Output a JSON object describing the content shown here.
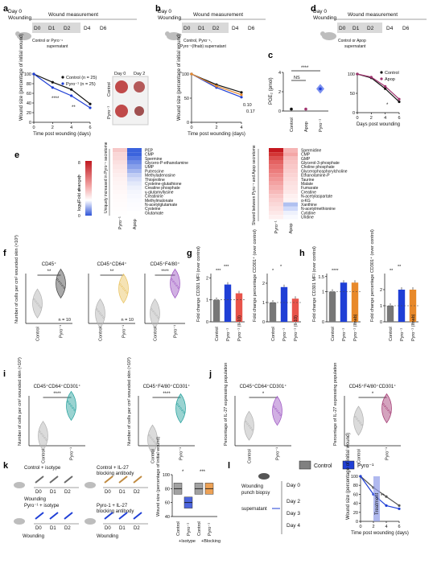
{
  "panel_letters": [
    "a",
    "b",
    "c",
    "d",
    "e",
    "f",
    "g",
    "h",
    "i",
    "j",
    "k",
    "l"
  ],
  "timeline": {
    "day0": "Day 0",
    "wounding": "Wounding",
    "wound_measurement": "Wound measurement",
    "days": [
      "D0",
      "D1",
      "D2",
      "D4",
      "D6"
    ],
    "control_or_pyro_supernatant": "Control or Pyro⁻¹",
    "supernatant": "supernatant",
    "control_pyro_pyro_ifnab": "Control, Pyro⁻¹,",
    "pyro_ifnab_supernatant": "Pyro⁻¹(Ifnab) supernatant",
    "control_or_apop": "Control or Apop",
    "apop_supernatant": "supernatant"
  },
  "panel_a": {
    "legend": [
      "Control (n = 25)",
      "Pyro⁻¹ (n = 25)"
    ],
    "stars": [
      "****",
      "**"
    ],
    "photo_labels": {
      "day0": "Day 0",
      "day2": "Day 2",
      "control": "Control",
      "pyro": "Pyro⁻¹"
    }
  },
  "panel_b": {
    "pvalues": [
      "0.10",
      "0.17"
    ]
  },
  "panel_c": {
    "ns": "NS",
    "stars": "****"
  },
  "panel_d": {
    "legend": [
      "Control",
      "Apop"
    ],
    "star": "*"
  },
  "panel_e": {
    "colorbar_title": "log₂(Fold change)",
    "colorbar_ticks": [
      "8",
      "6",
      "4",
      "2",
      "0"
    ],
    "left_group_label": "Uniquely increased in Pyro⁻¹ secretome",
    "right_group_label": "Shared between Pyro⁻¹ and Apop secretome",
    "left_columns": [
      "Pyro⁻¹",
      "Apop"
    ],
    "right_columns": [
      "Pyro⁻¹",
      "Apop"
    ],
    "left_metabolites": [
      "PEP",
      "CMP",
      "Spermine",
      "Glycero-P-ethanolamine",
      "UMP",
      "Putrescine",
      "Methyladenosine",
      "Thioproline",
      "Cysteine-glutathione",
      "Creatine phosphate",
      "γ-glutamyllysine",
      "Creatinine",
      "Methylmalonate",
      "N-acetylglutamate",
      "Cysteine",
      "Glutamate"
    ],
    "right_metabolites": [
      "Spermidine",
      "CMP",
      "GMP",
      "Glycerol-3-phosphate",
      "Choline phosphate",
      "Glycerophosphorylcholine",
      "Ethanolamine-P",
      "Taurine",
      "Malate",
      "Fumarate",
      "Creatine",
      "N-acetylaspartate",
      "α-KG",
      "Xanthine",
      "N-acetylmethionine",
      "Cytidine",
      "Uridine"
    ]
  },
  "panel_f": {
    "titles": [
      "CD45⁺",
      "CD45⁺CD64⁺",
      "CD45⁺F4/80⁺"
    ],
    "stars": [
      "**",
      "**",
      "****"
    ],
    "n_labels": [
      "n = 10",
      "n = 10"
    ],
    "xlabels": [
      "Control",
      "Pyro⁻¹"
    ]
  },
  "panel_g": {
    "stars": [
      "***",
      "***",
      "*",
      "*"
    ],
    "xlabels": [
      "Control",
      "Pyro⁻¹",
      "Pyro⁻¹ (Il-10)"
    ]
  },
  "panel_h": {
    "stars": [
      "****",
      "**",
      "**"
    ],
    "xlabels": [
      "Control",
      "Pyro⁻¹",
      "Pyro⁻¹ (Ifnab)"
    ]
  },
  "panel_i": {
    "titles": [
      "CD45⁺CD64⁺CD301⁺",
      "CD45⁺F4/80⁺CD301⁺"
    ],
    "stars": [
      "****",
      "****"
    ],
    "xlabels": [
      "Control",
      "Pyro⁻¹"
    ]
  },
  "panel_j": {
    "titles": [
      "CD45⁺CD64⁺CD301⁺",
      "CD45⁺F4/80⁺CD301⁺"
    ],
    "stars": [
      "*",
      "*"
    ],
    "xlabels": [
      "Control",
      "Pyro⁻¹"
    ]
  },
  "panel_k": {
    "groups": [
      "Control + isotype",
      "Control + IL-27",
      "blocking antibody",
      "Pyro⁻¹ + isotype",
      "Pyro-1 + IL-27",
      "blocking antibody"
    ],
    "stars": [
      "*",
      "***"
    ],
    "xlabels": [
      "Control",
      "Pyro⁻¹",
      "Control",
      "Pyro⁻¹"
    ],
    "group_labels": [
      "+Isotype",
      "+Blocking"
    ],
    "wounding": "Wounding"
  },
  "panel_l": {
    "legend": [
      "Control",
      "Pyro⁻¹"
    ],
    "wounding": "Wounding",
    "punch_biopsy": "punch biopsy",
    "supernatant": "supernatant",
    "days": [
      "Day 0",
      "Day 2",
      "Day 3",
      "Day 4"
    ],
    "treatment": "Treatment",
    "stars": "**"
  },
  "colors": {
    "control": "#111111",
    "pyro": "#1f3fd6",
    "apop": "#a0336e",
    "pyro_ifn": "#e8892a",
    "il10": "#e8534a",
    "purple": "#9a4fc0",
    "teal": "#1e9e9a",
    "yellow": "#e8c15a",
    "pink": "#e06070"
  },
  "chart_data": [
    {
      "type": "line",
      "panel": "a",
      "xlabel": "Time post wounding (days)",
      "ylabel": "Wound size (percentage of initial wound)",
      "x": [
        0,
        2,
        4,
        6
      ],
      "xticks": [
        "0",
        "2",
        "4",
        "6"
      ],
      "yticks": [
        "0",
        "20",
        "40",
        "60",
        "80",
        "100"
      ],
      "ylim": [
        0,
        100
      ],
      "series": [
        {
          "name": "Control (n = 25)",
          "values": [
            100,
            83,
            68,
            38
          ]
        },
        {
          "name": "Pyro⁻¹ (n = 25)",
          "values": [
            100,
            72,
            55,
            30
          ]
        }
      ]
    },
    {
      "type": "line",
      "panel": "b",
      "xlabel": "Time post wounding (days)",
      "ylabel": "Wound size (percentage of initial wound)",
      "x": [
        0,
        2,
        4
      ],
      "xticks": [
        "0",
        "2",
        "4"
      ],
      "yticks": [
        "0",
        "50",
        "100"
      ],
      "ylim": [
        0,
        100
      ],
      "series": [
        {
          "values": [
            100,
            78,
            62
          ]
        },
        {
          "values": [
            100,
            72,
            52
          ]
        },
        {
          "values": [
            100,
            75,
            57
          ]
        }
      ]
    },
    {
      "type": "scatter",
      "panel": "c",
      "ylabel": "PGE₂ (pmol)",
      "yticks": [
        "0",
        "2",
        "4"
      ],
      "ylim": [
        0,
        4
      ],
      "categories": [
        "Control",
        "Apop",
        "Pyro⁻¹"
      ],
      "values": [
        0.2,
        0.2,
        2.3
      ]
    },
    {
      "type": "line",
      "panel": "d",
      "xlabel": "Days post wounding",
      "x": [
        0,
        2,
        4,
        6
      ],
      "xticks": [
        "0",
        "2",
        "4",
        "6"
      ],
      "yticks": [
        "0",
        "50",
        "100"
      ],
      "ylim": [
        0,
        100
      ],
      "series": [
        {
          "name": "Control",
          "values": [
            100,
            90,
            62,
            28
          ]
        },
        {
          "name": "Apop",
          "values": [
            100,
            92,
            68,
            35
          ]
        }
      ]
    },
    {
      "type": "violin",
      "panel": "f",
      "ylabel": "Number of cells per cm² wounded skin (×10³)",
      "categories": [
        "Control",
        "Pyro⁻¹"
      ],
      "series": [
        {
          "name": "CD45⁺",
          "values": [
            40,
            80
          ]
        },
        {
          "name": "CD45⁺CD64⁺",
          "values": [
            2,
            7
          ]
        },
        {
          "name": "CD45⁺F4/80⁺",
          "values": [
            5,
            20
          ]
        }
      ]
    },
    {
      "type": "bar",
      "panel": "g",
      "ylabel": "Fold change CD301 MFI (over control)",
      "categories": [
        "Control",
        "Pyro⁻¹",
        "Pyro⁻¹ (Il-10)"
      ],
      "values": [
        1.0,
        1.7,
        1.3
      ],
      "yticks": [
        "0",
        "1",
        "2"
      ],
      "ylim": [
        0,
        2.2
      ]
    },
    {
      "type": "bar",
      "panel": "g2",
      "ylabel": "Fold change percentage CD301⁺ (over control)",
      "categories": [
        "Control",
        "Pyro⁻¹",
        "Pyro⁻¹ (Il-10)"
      ],
      "values": [
        1.0,
        1.8,
        1.2
      ],
      "yticks": [
        "0",
        "1",
        "2"
      ],
      "ylim": [
        0,
        2.5
      ]
    },
    {
      "type": "bar",
      "panel": "h",
      "ylabel": "Fold change CD301 MFI (over control)",
      "categories": [
        "Control",
        "Pyro⁻¹",
        "Pyro⁻¹ (Ifnab)"
      ],
      "values": [
        1.0,
        1.3,
        1.3
      ],
      "yticks": [
        "0",
        "1",
        "1.5"
      ],
      "ylim": [
        0,
        1.6
      ]
    },
    {
      "type": "bar",
      "panel": "h2",
      "ylabel": "Fold change percentage CD301⁺ (over control)",
      "categories": [
        "Control",
        "Pyro⁻¹",
        "Pyro⁻¹ (Ifnab)"
      ],
      "values": [
        1.0,
        2.0,
        2.0
      ],
      "yticks": [
        "0",
        "1",
        "2"
      ],
      "ylim": [
        0,
        3
      ]
    },
    {
      "type": "violin",
      "panel": "i",
      "ylabel": "Number of cells per cm² wounded skin (×10³)",
      "categories": [
        "Control",
        "Pyro⁻¹"
      ],
      "series": [
        {
          "name": "CD45⁺CD64⁺CD301⁺",
          "values": [
            0.5,
            2.0
          ]
        },
        {
          "name": "CD45⁺F4/80⁺CD301⁺",
          "values": [
            0.5,
            3.0
          ]
        }
      ]
    },
    {
      "type": "violin",
      "panel": "j",
      "ylabel": "Percentage of IL-27 expressing population",
      "categories": [
        "Control",
        "Pyro⁻¹"
      ],
      "series": [
        {
          "name": "CD45⁺CD64⁺CD301⁺",
          "values": [
            4,
            7
          ]
        },
        {
          "name": "CD45⁺F4/80⁺CD301⁺",
          "values": [
            8,
            12
          ]
        }
      ]
    },
    {
      "type": "box",
      "panel": "k",
      "ylabel": "Wound size (percentage of initial wound)",
      "categories": [
        "Control",
        "Pyro⁻¹",
        "Control",
        "Pyro⁻¹"
      ],
      "values": [
        80,
        60,
        80,
        80
      ],
      "yticks": [
        "40",
        "60",
        "80",
        "100"
      ],
      "ylim": [
        40,
        100
      ]
    },
    {
      "type": "line",
      "panel": "l",
      "xlabel": "Time post wounding (days)",
      "ylabel": "Wound size (percentage of initial wound)",
      "x": [
        0,
        2,
        4,
        6
      ],
      "xticks": [
        "0",
        "2",
        "4",
        "6"
      ],
      "yticks": [
        "0",
        "20",
        "40",
        "60",
        "80",
        "100"
      ],
      "ylim": [
        0,
        100
      ],
      "series": [
        {
          "name": "Control",
          "values": [
            100,
            75,
            55,
            35
          ]
        },
        {
          "name": "Pyro⁻¹",
          "values": [
            100,
            60,
            35,
            28
          ]
        }
      ]
    }
  ]
}
